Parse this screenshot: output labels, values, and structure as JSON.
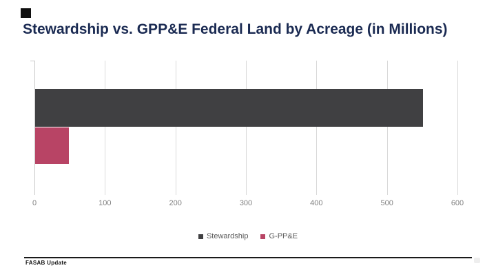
{
  "slide": {
    "title": "Stewardship vs. GPP&E Federal Land by Acreage (in Millions)",
    "footer_text": "FASAB Update",
    "title_color": "#1a2a52",
    "accent_color": "#0f0f0f"
  },
  "chart_data": {
    "type": "bar",
    "orientation": "horizontal",
    "title": "Stewardship vs. GPP&E Federal Land by Acreage (in Millions)",
    "series": [
      {
        "name": "Stewardship",
        "value": 550,
        "color": "#404042"
      },
      {
        "name": "G-PP&E",
        "value": 48,
        "color": "#b84465"
      }
    ],
    "xlim": [
      0,
      600
    ],
    "x_ticks": [
      0,
      100,
      200,
      300,
      400,
      500,
      600
    ],
    "x_tick_labels": [
      "0",
      "100",
      "200",
      "300",
      "400",
      "500",
      "600"
    ],
    "grid": true,
    "gridline_color": "#d9d9d9",
    "axis_label_color": "#7f7f7f",
    "legend_position": "bottom",
    "legend": [
      "Stewardship",
      "G-PP&E"
    ]
  }
}
